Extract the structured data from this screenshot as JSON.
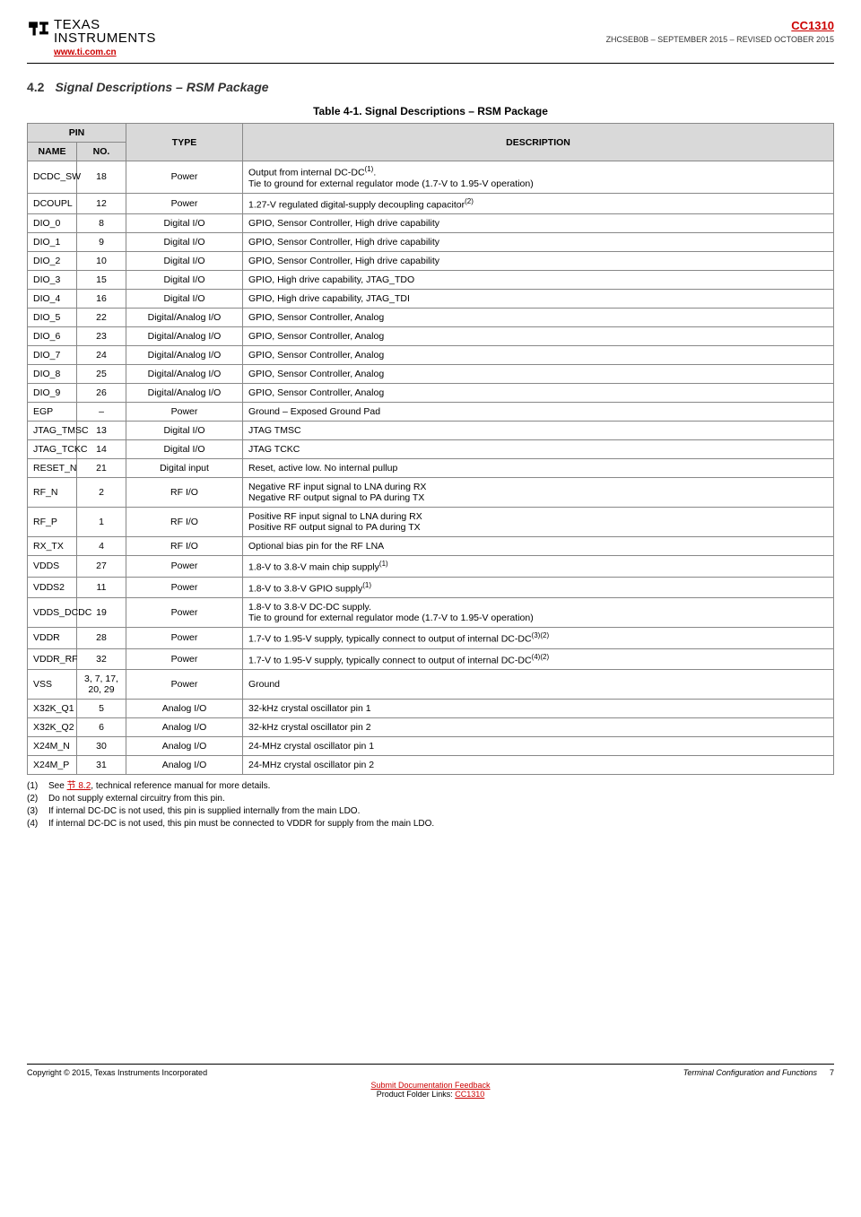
{
  "header": {
    "logo_line1": "TEXAS",
    "logo_line2": "INSTRUMENTS",
    "site": "www.ti.com.cn",
    "part_no": "CC1310",
    "doc_rev": "ZHCSEB0B – SEPTEMBER 2015 – REVISED OCTOBER 2015"
  },
  "section": {
    "number": "4.2",
    "title": "Signal Descriptions – RSM Package"
  },
  "table_caption": "Table 4-1. Signal Descriptions – RSM Package",
  "table_headers": {
    "pin_group": "PIN",
    "name": "NAME",
    "no": "NO.",
    "type": "TYPE",
    "desc": "DESCRIPTION"
  },
  "pins": [
    {
      "name": "DCDC_SW",
      "no": "18",
      "type": "Power",
      "desc": "Output from internal DC-DC",
      "sup1": "(1)",
      "desc_tail": ".\nTie to ground for external regulator mode (1.7-V to 1.95-V operation)"
    },
    {
      "name": "DCOUPL",
      "no": "12",
      "type": "Power",
      "desc": "1.27-V regulated digital-supply decoupling capacitor",
      "sup1": "(2)"
    },
    {
      "name": "DIO_0",
      "no": "8",
      "type": "Digital I/O",
      "desc": "GPIO, Sensor Controller, High drive capability"
    },
    {
      "name": "DIO_1",
      "no": "9",
      "type": "Digital I/O",
      "desc": "GPIO, Sensor Controller, High drive capability"
    },
    {
      "name": "DIO_2",
      "no": "10",
      "type": "Digital I/O",
      "desc": "GPIO, Sensor Controller, High drive capability"
    },
    {
      "name": "DIO_3",
      "no": "15",
      "type": "Digital I/O",
      "desc": "GPIO, High drive capability, JTAG_TDO"
    },
    {
      "name": "DIO_4",
      "no": "16",
      "type": "Digital I/O",
      "desc": "GPIO, High drive capability, JTAG_TDI"
    },
    {
      "name": "DIO_5",
      "no": "22",
      "type": "Digital/Analog I/O",
      "desc": "GPIO, Sensor Controller, Analog"
    },
    {
      "name": "DIO_6",
      "no": "23",
      "type": "Digital/Analog I/O",
      "desc": "GPIO, Sensor Controller, Analog"
    },
    {
      "name": "DIO_7",
      "no": "24",
      "type": "Digital/Analog I/O",
      "desc": "GPIO, Sensor Controller, Analog"
    },
    {
      "name": "DIO_8",
      "no": "25",
      "type": "Digital/Analog I/O",
      "desc": "GPIO, Sensor Controller, Analog"
    },
    {
      "name": "DIO_9",
      "no": "26",
      "type": "Digital/Analog I/O",
      "desc": "GPIO, Sensor Controller, Analog"
    },
    {
      "name": "EGP",
      "no": "–",
      "type": "Power",
      "desc": "Ground – Exposed Ground Pad"
    },
    {
      "name": "JTAG_TMSC",
      "no": "13",
      "type": "Digital I/O",
      "desc": "JTAG TMSC"
    },
    {
      "name": "JTAG_TCKC",
      "no": "14",
      "type": "Digital I/O",
      "desc": "JTAG TCKC"
    },
    {
      "name": "RESET_N",
      "no": "21",
      "type": "Digital input",
      "desc": "Reset, active low. No internal pullup"
    },
    {
      "name": "RF_N",
      "no": "2",
      "type": "RF I/O",
      "desc": "Negative RF input signal to LNA during RX\nNegative RF output signal to PA during TX"
    },
    {
      "name": "RF_P",
      "no": "1",
      "type": "RF I/O",
      "desc": "Positive RF input signal to LNA during RX\nPositive RF output signal to PA during TX"
    },
    {
      "name": "RX_TX",
      "no": "4",
      "type": "RF I/O",
      "desc": "Optional bias pin for the RF LNA"
    },
    {
      "name": "VDDS",
      "no": "27",
      "type": "Power",
      "desc": "1.8-V to 3.8-V main chip supply",
      "sup1": "(1)"
    },
    {
      "name": "VDDS2",
      "no": "11",
      "type": "Power",
      "desc": "1.8-V to 3.8-V GPIO supply",
      "sup1": "(1)"
    },
    {
      "name": "VDDS_DCDC",
      "no": "19",
      "type": "Power",
      "desc": "1.8-V to 3.8-V DC-DC supply.\nTie to ground for external regulator mode (1.7-V to 1.95-V operation)"
    },
    {
      "name": "VDDR",
      "no": "28",
      "type": "Power",
      "desc": "1.7-V to 1.95-V supply, typically connect to output of internal DC-DC",
      "sup1": "(3)(2)"
    },
    {
      "name": "VDDR_RF",
      "no": "32",
      "type": "Power",
      "desc": "1.7-V to 1.95-V supply, typically connect to output of internal DC-DC",
      "sup1": "(4)(2)"
    },
    {
      "name": "VSS",
      "no": "3, 7, 17, 20, 29",
      "type": "Power",
      "desc": "Ground"
    },
    {
      "name": "X32K_Q1",
      "no": "5",
      "type": "Analog I/O",
      "desc": "32-kHz crystal oscillator pin 1"
    },
    {
      "name": "X32K_Q2",
      "no": "6",
      "type": "Analog I/O",
      "desc": "32-kHz crystal oscillator pin 2"
    },
    {
      "name": "X24M_N",
      "no": "30",
      "type": "Analog I/O",
      "desc": "24-MHz crystal oscillator pin 1"
    },
    {
      "name": "X24M_P",
      "no": "31",
      "type": "Analog I/O",
      "desc": "24-MHz crystal oscillator pin 2"
    }
  ],
  "footnotes": {
    "f1_pre": "See ",
    "f1_link": "节 8.2",
    "f1_post": ", technical reference manual for more details.",
    "f2": "Do not supply external circuitry from this pin.",
    "f3": "If internal DC-DC is not used, this pin is supplied internally from the main LDO.",
    "f4": "If internal DC-DC is not used, this pin must be connected to VDDR for supply from the main LDO."
  },
  "footer": {
    "copyright": "Copyright © 2015, Texas Instruments Incorporated",
    "section_name": "Terminal Configuration and Functions",
    "page_no": "7",
    "feedback": "Submit Documentation Feedback",
    "folder_pre": "Product Folder Links: ",
    "folder_link": "CC1310"
  }
}
